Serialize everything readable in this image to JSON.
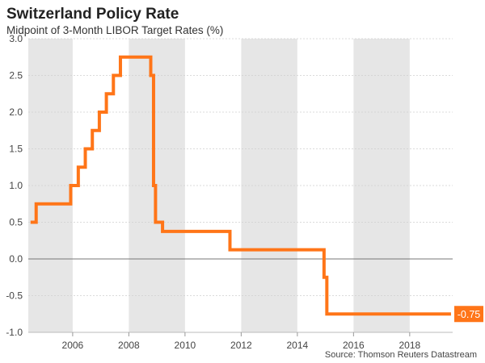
{
  "chart_data": {
    "type": "line",
    "step": true,
    "title": "Switzerland Policy Rate",
    "subtitle": "Midpoint of 3-Month LIBOR Target Rates (%)",
    "source": "Source: Thomson Reuters Datastream",
    "xlim": [
      2004.42,
      2019.53
    ],
    "ylim": [
      -1.0,
      3.0
    ],
    "x_ticks": [
      2006,
      2008,
      2010,
      2012,
      2014,
      2016,
      2018
    ],
    "x_tick_labels": [
      "2006",
      "2008",
      "2010",
      "2012",
      "2014",
      "2016",
      "2018"
    ],
    "y_ticks": [
      3.0,
      2.5,
      2.0,
      1.5,
      1.0,
      0.5,
      0.0,
      -0.5,
      -1.0
    ],
    "y_tick_labels": [
      "3.0",
      "2.5",
      "2.0",
      "1.5",
      "1.0",
      "0.5",
      "0.0",
      "-0.5",
      "-1.0"
    ],
    "grid": true,
    "shaded_bands": [
      [
        2004.42,
        2006
      ],
      [
        2008,
        2010
      ],
      [
        2012,
        2014
      ],
      [
        2016,
        2018
      ]
    ],
    "series": [
      {
        "color": "#ff7518",
        "points": [
          [
            2004.5,
            0.5
          ],
          [
            2004.7,
            0.75
          ],
          [
            2005.93,
            1.0
          ],
          [
            2006.2,
            1.25
          ],
          [
            2006.45,
            1.5
          ],
          [
            2006.7,
            1.75
          ],
          [
            2006.95,
            2.0
          ],
          [
            2007.2,
            2.25
          ],
          [
            2007.45,
            2.5
          ],
          [
            2007.7,
            2.75
          ],
          [
            2008.78,
            2.5
          ],
          [
            2008.88,
            1.0
          ],
          [
            2008.95,
            0.5
          ],
          [
            2009.2,
            0.375
          ],
          [
            2011.6,
            0.125
          ],
          [
            2014.95,
            -0.25
          ],
          [
            2015.05,
            -0.75
          ],
          [
            2019.47,
            -0.75
          ]
        ],
        "end_label": "-0.75"
      }
    ]
  }
}
